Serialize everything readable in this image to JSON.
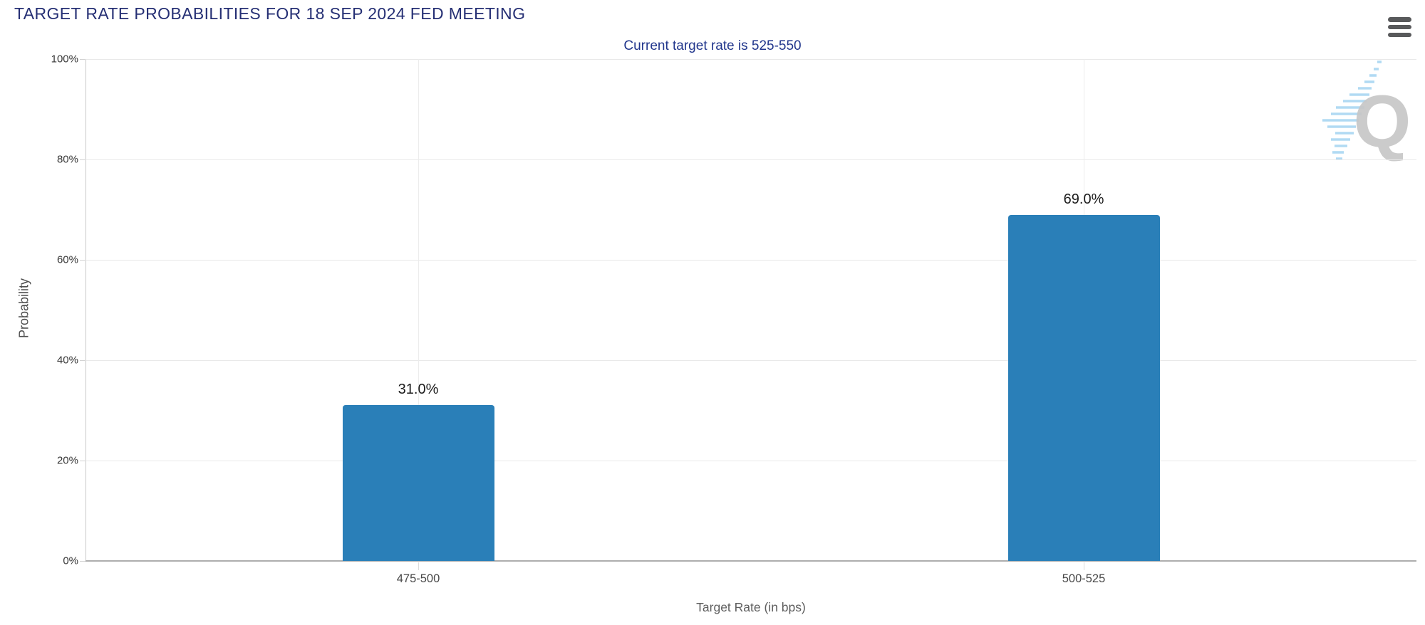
{
  "header": {
    "title": "TARGET RATE PROBABILITIES FOR 18 SEP 2024 FED MEETING",
    "subtitle": "Current target rate is 525-550"
  },
  "controls": {
    "menu_icon": "hamburger-menu"
  },
  "watermark": {
    "letter": "Q"
  },
  "colors": {
    "title": "#252f74",
    "subtitle": "#21368c",
    "bar": "#2a7fb8",
    "grid": "#e9e9e9",
    "axis": "#aeaeae",
    "tick_label": "#373737",
    "category_label": "#484848",
    "axis_title": "#5e5e5e",
    "value_label": "#1b1b1b",
    "menu_icon": "#58595b",
    "watermark_gray": "#c7c7c7",
    "watermark_blue": "#a9d6f2"
  },
  "chart_data": {
    "type": "bar",
    "title": "TARGET RATE PROBABILITIES FOR 18 SEP 2024 FED MEETING",
    "subtitle": "Current target rate is 525-550",
    "categories": [
      "475-500",
      "500-525"
    ],
    "values": [
      31.0,
      69.0
    ],
    "value_labels": [
      "31.0%",
      "69.0%"
    ],
    "series": [
      {
        "name": "Probability",
        "values": [
          31.0,
          69.0
        ]
      }
    ],
    "xlabel": "Target Rate (in bps)",
    "ylabel": "Probability",
    "ylim": [
      0,
      100
    ],
    "yticks": [
      "0%",
      "20%",
      "40%",
      "60%",
      "80%",
      "100%"
    ],
    "grid": true,
    "legend": false,
    "bar_color": "#2a7fb8"
  }
}
